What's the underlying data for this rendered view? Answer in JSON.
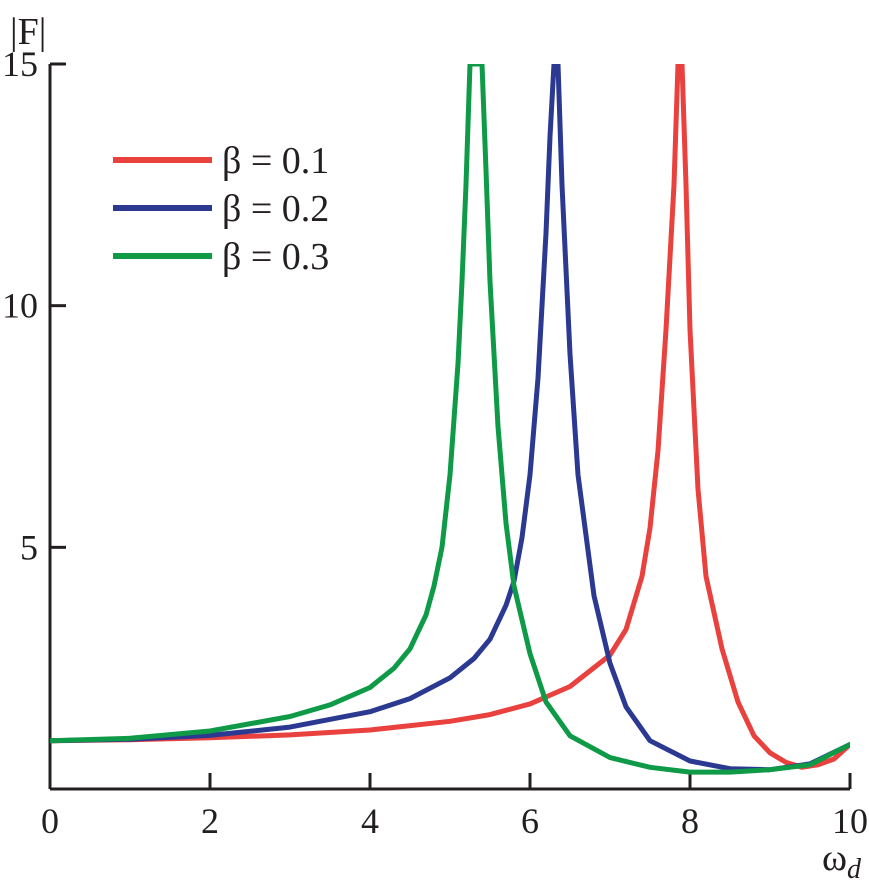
{
  "chart_data": {
    "type": "line",
    "title": "",
    "xlabel": "ω",
    "xlabel_sub": "d",
    "ylabel": "|F|",
    "xlim": [
      0,
      10
    ],
    "ylim": [
      0,
      15
    ],
    "x_ticks": [
      0,
      2,
      4,
      6,
      8,
      10
    ],
    "y_ticks": [
      5,
      10,
      15
    ],
    "x_tick_labels": [
      "0",
      "2",
      "4",
      "6",
      "8",
      "10"
    ],
    "y_tick_labels": [
      "5",
      "10",
      "15"
    ],
    "grid": false,
    "legend_position": "top-left",
    "series": [
      {
        "name": "β = 0.1",
        "color": "#e8413e",
        "x": [
          0,
          1,
          2,
          3,
          4,
          5,
          5.5,
          6,
          6.5,
          7,
          7.2,
          7.4,
          7.5,
          7.6,
          7.7,
          7.8,
          7.85,
          7.9,
          7.95,
          8.0,
          8.1,
          8.2,
          8.4,
          8.6,
          8.8,
          9.0,
          9.2,
          9.4,
          9.6,
          9.8,
          10.0
        ],
        "y": [
          1.0,
          1.02,
          1.06,
          1.12,
          1.22,
          1.4,
          1.54,
          1.76,
          2.12,
          2.77,
          3.3,
          4.4,
          5.4,
          7.0,
          9.5,
          12.5,
          15,
          15,
          12.5,
          9.5,
          6.2,
          4.4,
          2.9,
          1.8,
          1.1,
          0.75,
          0.55,
          0.45,
          0.5,
          0.62,
          0.92
        ]
      },
      {
        "name": "β = 0.2",
        "color": "#2b3990",
        "x": [
          0,
          1,
          2,
          3,
          4,
          4.5,
          5,
          5.3,
          5.5,
          5.7,
          5.8,
          5.9,
          6.0,
          6.1,
          6.2,
          6.25,
          6.3,
          6.35,
          6.4,
          6.5,
          6.6,
          6.8,
          7.0,
          7.2,
          7.5,
          8.0,
          8.5,
          9.0,
          9.5,
          10.0
        ],
        "y": [
          1.0,
          1.03,
          1.11,
          1.28,
          1.6,
          1.87,
          2.3,
          2.7,
          3.1,
          3.8,
          4.3,
          5.2,
          6.5,
          8.5,
          11.5,
          13.5,
          15,
          15,
          12.5,
          9.0,
          6.5,
          4.0,
          2.6,
          1.7,
          1.0,
          0.58,
          0.42,
          0.4,
          0.52,
          0.92
        ]
      },
      {
        "name": "β = 0.3",
        "color": "#0f9a48",
        "x": [
          0,
          1,
          2,
          3,
          3.5,
          4,
          4.3,
          4.5,
          4.7,
          4.8,
          4.9,
          5.0,
          5.1,
          5.15,
          5.2,
          5.25,
          5.4,
          5.45,
          5.5,
          5.6,
          5.7,
          5.8,
          6.0,
          6.2,
          6.5,
          7.0,
          7.5,
          8.0,
          8.5,
          9.0,
          9.5,
          10.0
        ],
        "y": [
          1.0,
          1.05,
          1.2,
          1.5,
          1.74,
          2.1,
          2.5,
          2.9,
          3.6,
          4.2,
          5.0,
          6.5,
          8.8,
          10.5,
          12.5,
          15,
          15,
          12.8,
          10.5,
          7.5,
          5.5,
          4.2,
          2.8,
          1.8,
          1.1,
          0.65,
          0.45,
          0.35,
          0.35,
          0.4,
          0.5,
          0.92
        ]
      }
    ]
  }
}
